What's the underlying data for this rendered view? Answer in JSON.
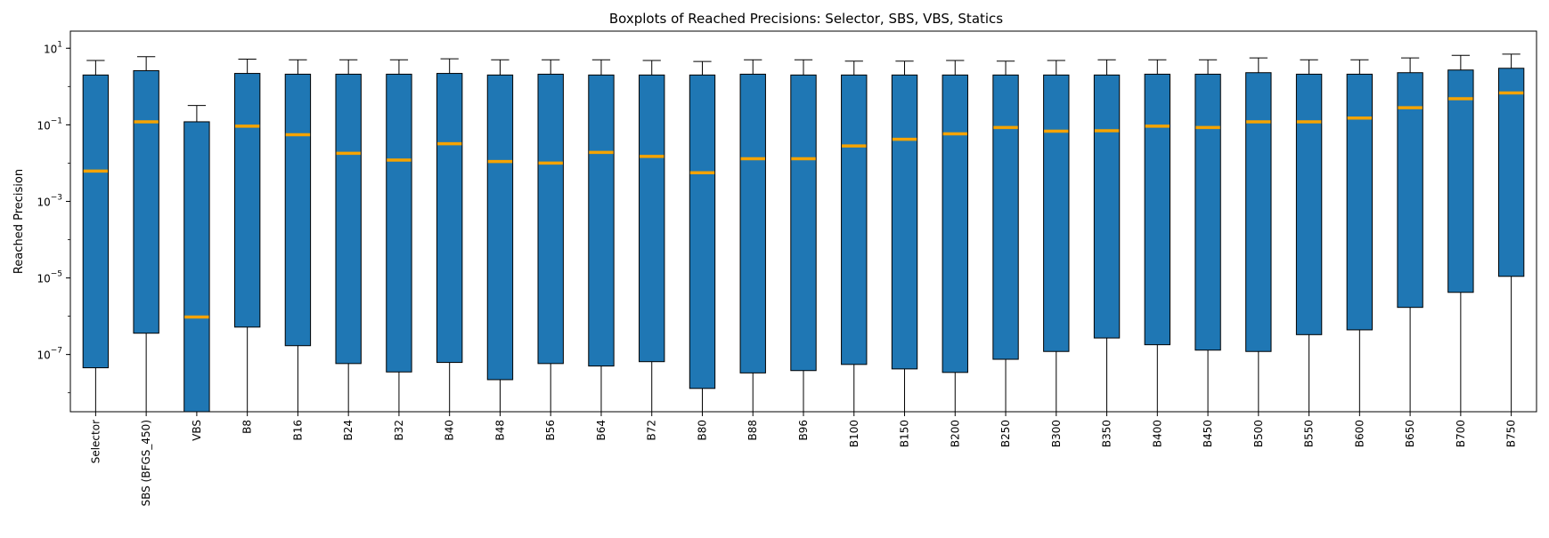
{
  "chart_data": {
    "type": "box",
    "title": "Boxplots of Reached Precisions: Selector, SBS, VBS, Statics",
    "xlabel": "",
    "ylabel": "Reached Precision",
    "yscale": "log",
    "ylim": [
      3.2e-09,
      28
    ],
    "yticks": [
      {
        "value": 10,
        "base": "10",
        "exp": "1"
      },
      {
        "value": 0.1,
        "base": "10",
        "exp": "−1"
      },
      {
        "value": 0.001,
        "base": "10",
        "exp": "−3"
      },
      {
        "value": 1e-05,
        "base": "10",
        "exp": "−5"
      },
      {
        "value": 1e-07,
        "base": "10",
        "exp": "−7"
      }
    ],
    "grid": false,
    "colors": {
      "box": "#1f77b4",
      "median": "#f5a300",
      "edge": "#000000"
    },
    "categories": [
      "Selector",
      "SBS (BFGS_450)",
      "VBS",
      "B8",
      "B16",
      "B24",
      "B32",
      "B40",
      "B48",
      "B56",
      "B64",
      "B72",
      "B80",
      "B88",
      "B96",
      "B100",
      "B150",
      "B200",
      "B250",
      "B300",
      "B350",
      "B400",
      "B450",
      "B500",
      "B550",
      "B600",
      "B650",
      "B700",
      "B750"
    ],
    "boxes": [
      {
        "whislo": 3.2e-09,
        "q1": 4.5e-08,
        "med": 0.0062,
        "q3": 2.0,
        "whishi": 4.8
      },
      {
        "whislo": 3.2e-09,
        "q1": 3.6e-07,
        "med": 0.12,
        "q3": 2.6,
        "whishi": 6.0
      },
      {
        "whislo": 3.2e-09,
        "q1": 3.2e-09,
        "med": 9.5e-07,
        "q3": 0.12,
        "whishi": 0.32
      },
      {
        "whislo": 3.2e-09,
        "q1": 5.2e-07,
        "med": 0.092,
        "q3": 2.2,
        "whishi": 5.2
      },
      {
        "whislo": 3.2e-09,
        "q1": 1.7e-07,
        "med": 0.055,
        "q3": 2.1,
        "whishi": 5.0
      },
      {
        "whislo": 3.2e-09,
        "q1": 5.8e-08,
        "med": 0.018,
        "q3": 2.1,
        "whishi": 5.0
      },
      {
        "whislo": 3.2e-09,
        "q1": 3.5e-08,
        "med": 0.012,
        "q3": 2.1,
        "whishi": 5.0
      },
      {
        "whislo": 3.2e-09,
        "q1": 6.2e-08,
        "med": 0.032,
        "q3": 2.2,
        "whishi": 5.3
      },
      {
        "whislo": 3.2e-09,
        "q1": 2.2e-08,
        "med": 0.011,
        "q3": 2.0,
        "whishi": 5.0
      },
      {
        "whislo": 3.2e-09,
        "q1": 5.8e-08,
        "med": 0.01,
        "q3": 2.1,
        "whishi": 5.0
      },
      {
        "whislo": 3.2e-09,
        "q1": 5e-08,
        "med": 0.019,
        "q3": 2.0,
        "whishi": 5.0
      },
      {
        "whislo": 3.2e-09,
        "q1": 6.5e-08,
        "med": 0.015,
        "q3": 2.0,
        "whishi": 4.8
      },
      {
        "whislo": 3.2e-09,
        "q1": 1.3e-08,
        "med": 0.0056,
        "q3": 2.0,
        "whishi": 4.5
      },
      {
        "whislo": 3.2e-09,
        "q1": 3.3e-08,
        "med": 0.013,
        "q3": 2.1,
        "whishi": 5.0
      },
      {
        "whislo": 3.2e-09,
        "q1": 3.8e-08,
        "med": 0.013,
        "q3": 2.0,
        "whishi": 5.0
      },
      {
        "whislo": 3.2e-09,
        "q1": 5.5e-08,
        "med": 0.028,
        "q3": 2.0,
        "whishi": 4.6
      },
      {
        "whislo": 3.2e-09,
        "q1": 4.2e-08,
        "med": 0.042,
        "q3": 2.0,
        "whishi": 4.6
      },
      {
        "whislo": 3.2e-09,
        "q1": 3.4e-08,
        "med": 0.058,
        "q3": 2.0,
        "whishi": 4.8
      },
      {
        "whislo": 3.2e-09,
        "q1": 7.5e-08,
        "med": 0.085,
        "q3": 2.0,
        "whishi": 4.6
      },
      {
        "whislo": 3.2e-09,
        "q1": 1.2e-07,
        "med": 0.068,
        "q3": 2.0,
        "whishi": 4.8
      },
      {
        "whislo": 3.2e-09,
        "q1": 2.7e-07,
        "med": 0.07,
        "q3": 2.0,
        "whishi": 5.0
      },
      {
        "whislo": 3.2e-09,
        "q1": 1.8e-07,
        "med": 0.092,
        "q3": 2.1,
        "whishi": 5.0
      },
      {
        "whislo": 3.2e-09,
        "q1": 1.3e-07,
        "med": 0.085,
        "q3": 2.1,
        "whishi": 5.0
      },
      {
        "whislo": 3.2e-09,
        "q1": 1.2e-07,
        "med": 0.12,
        "q3": 2.3,
        "whishi": 5.6
      },
      {
        "whislo": 3.2e-09,
        "q1": 3.3e-07,
        "med": 0.12,
        "q3": 2.1,
        "whishi": 5.0
      },
      {
        "whislo": 3.2e-09,
        "q1": 4.4e-07,
        "med": 0.15,
        "q3": 2.1,
        "whishi": 5.0
      },
      {
        "whislo": 3.2e-09,
        "q1": 1.7e-06,
        "med": 0.28,
        "q3": 2.3,
        "whishi": 5.6
      },
      {
        "whislo": 3.2e-09,
        "q1": 4.2e-06,
        "med": 0.48,
        "q3": 2.7,
        "whishi": 6.5
      },
      {
        "whislo": 3.2e-09,
        "q1": 1.1e-05,
        "med": 0.68,
        "q3": 3.0,
        "whishi": 7.0
      }
    ]
  }
}
